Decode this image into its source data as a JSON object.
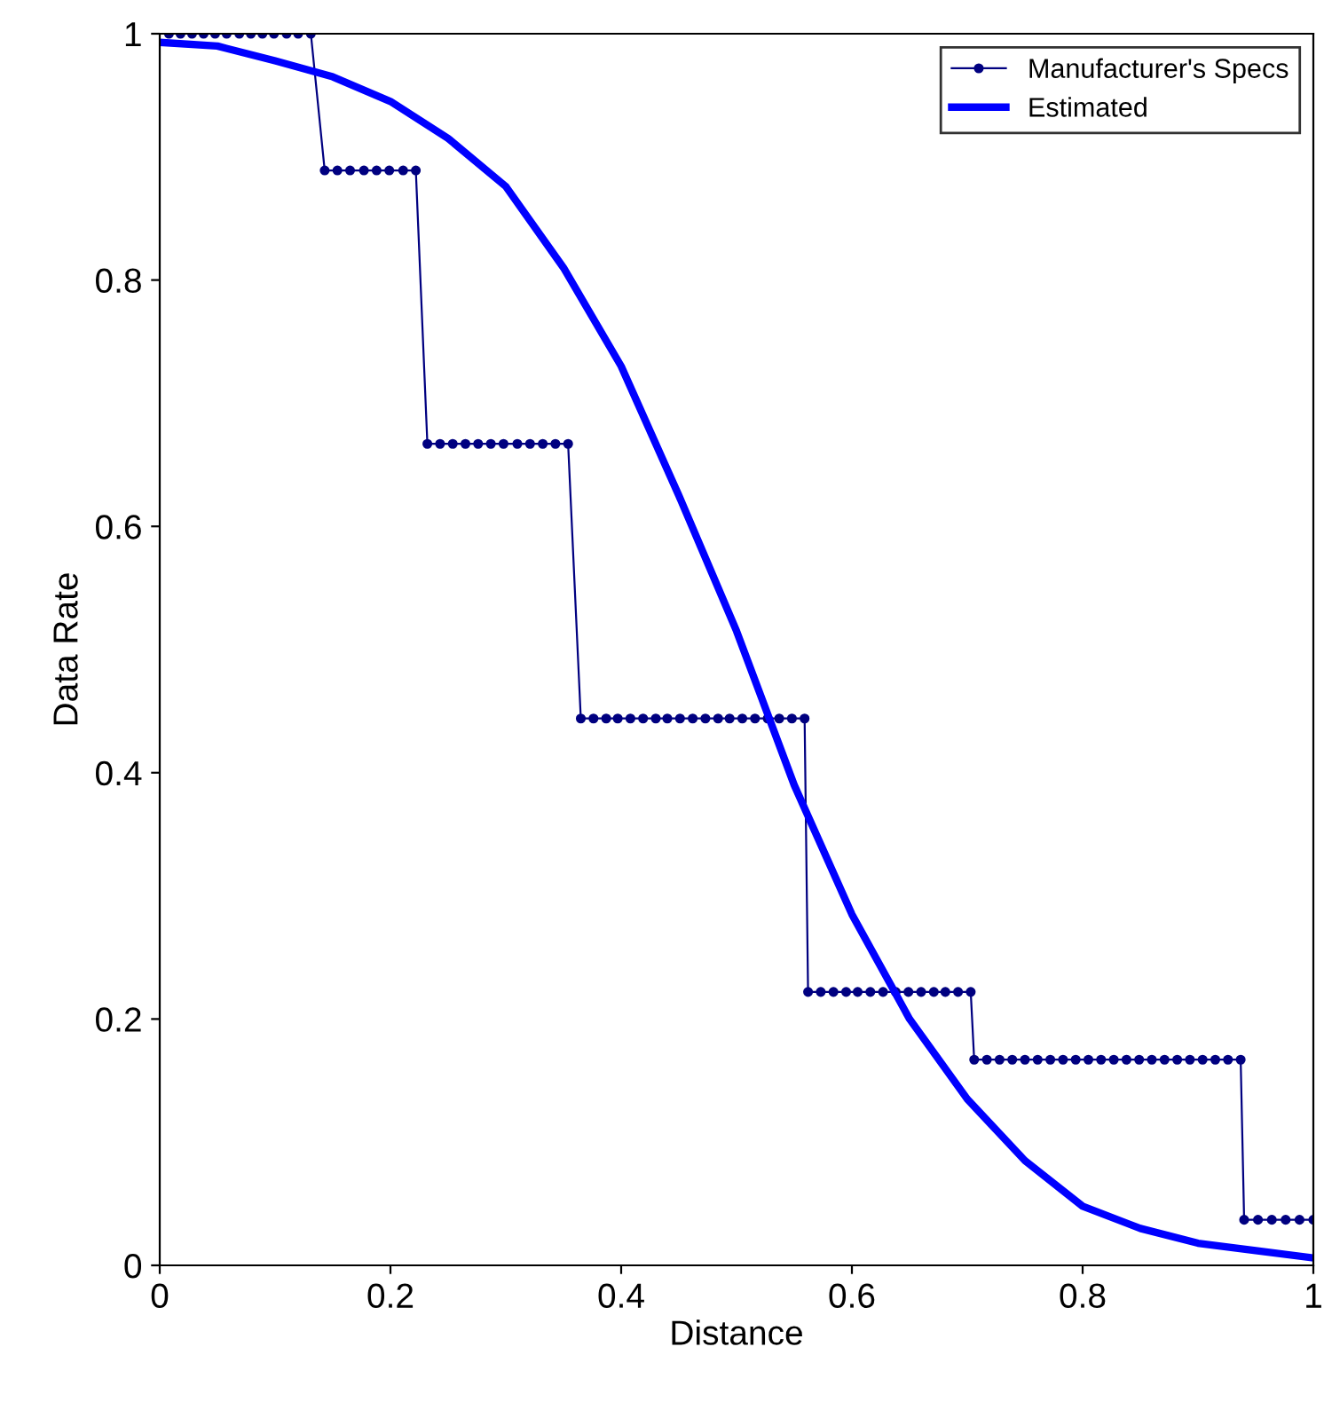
{
  "chart_data": {
    "type": "line",
    "xlabel": "Distance",
    "ylabel": "Data Rate",
    "xlim": [
      0,
      1
    ],
    "ylim": [
      0,
      1
    ],
    "xticks": [
      0,
      0.2,
      0.4,
      0.6,
      0.8,
      1
    ],
    "yticks": [
      0,
      0.2,
      0.4,
      0.6,
      0.8,
      1
    ],
    "grid": false,
    "legend": "top right",
    "series": [
      {
        "name": "Manufacturer's Specs",
        "color": "#000080",
        "marker": "circle",
        "line_style": "solid",
        "x": [
          0.008,
          0.018,
          0.028,
          0.038,
          0.048,
          0.058,
          0.069,
          0.079,
          0.089,
          0.099,
          0.11,
          0.12,
          0.131,
          0.143,
          0.154,
          0.165,
          0.177,
          0.188,
          0.199,
          0.211,
          0.222,
          0.232,
          0.243,
          0.254,
          0.265,
          0.276,
          0.287,
          0.298,
          0.31,
          0.321,
          0.332,
          0.343,
          0.354,
          0.365,
          0.376,
          0.387,
          0.397,
          0.408,
          0.419,
          0.43,
          0.44,
          0.451,
          0.462,
          0.473,
          0.484,
          0.494,
          0.505,
          0.516,
          0.527,
          0.537,
          0.548,
          0.559,
          0.562,
          0.573,
          0.584,
          0.595,
          0.605,
          0.616,
          0.627,
          0.638,
          0.649,
          0.66,
          0.671,
          0.681,
          0.692,
          0.703,
          0.706,
          0.717,
          0.728,
          0.739,
          0.75,
          0.761,
          0.772,
          0.783,
          0.794,
          0.805,
          0.816,
          0.827,
          0.838,
          0.849,
          0.86,
          0.871,
          0.882,
          0.893,
          0.904,
          0.915,
          0.926,
          0.937,
          0.94,
          0.952,
          0.964,
          0.976,
          0.988,
          1.0
        ],
        "values": [
          1,
          1,
          1,
          1,
          1,
          1,
          1,
          1,
          1,
          1,
          1,
          1,
          1,
          0.889,
          0.889,
          0.889,
          0.889,
          0.889,
          0.889,
          0.889,
          0.889,
          0.667,
          0.667,
          0.667,
          0.667,
          0.667,
          0.667,
          0.667,
          0.667,
          0.667,
          0.667,
          0.667,
          0.667,
          0.444,
          0.444,
          0.444,
          0.444,
          0.444,
          0.444,
          0.444,
          0.444,
          0.444,
          0.444,
          0.444,
          0.444,
          0.444,
          0.444,
          0.444,
          0.444,
          0.444,
          0.444,
          0.444,
          0.222,
          0.222,
          0.222,
          0.222,
          0.222,
          0.222,
          0.222,
          0.222,
          0.222,
          0.222,
          0.222,
          0.222,
          0.222,
          0.222,
          0.167,
          0.167,
          0.167,
          0.167,
          0.167,
          0.167,
          0.167,
          0.167,
          0.167,
          0.167,
          0.167,
          0.167,
          0.167,
          0.167,
          0.167,
          0.167,
          0.167,
          0.167,
          0.167,
          0.167,
          0.167,
          0.167,
          0.037,
          0.037,
          0.037,
          0.037,
          0.037,
          0.037
        ]
      },
      {
        "name": "Estimated",
        "color": "#0000ff",
        "marker": "none",
        "line_style": "solid",
        "x": [
          0,
          0.05,
          0.1,
          0.15,
          0.2,
          0.25,
          0.3,
          0.35,
          0.4,
          0.45,
          0.5,
          0.55,
          0.6,
          0.65,
          0.7,
          0.75,
          0.8,
          0.85,
          0.9,
          0.95,
          1.0
        ],
        "values": [
          0.993,
          0.99,
          0.978,
          0.965,
          0.945,
          0.915,
          0.876,
          0.81,
          0.73,
          0.625,
          0.515,
          0.39,
          0.285,
          0.2,
          0.135,
          0.085,
          0.048,
          0.03,
          0.018,
          0.012,
          0.006
        ]
      }
    ]
  }
}
